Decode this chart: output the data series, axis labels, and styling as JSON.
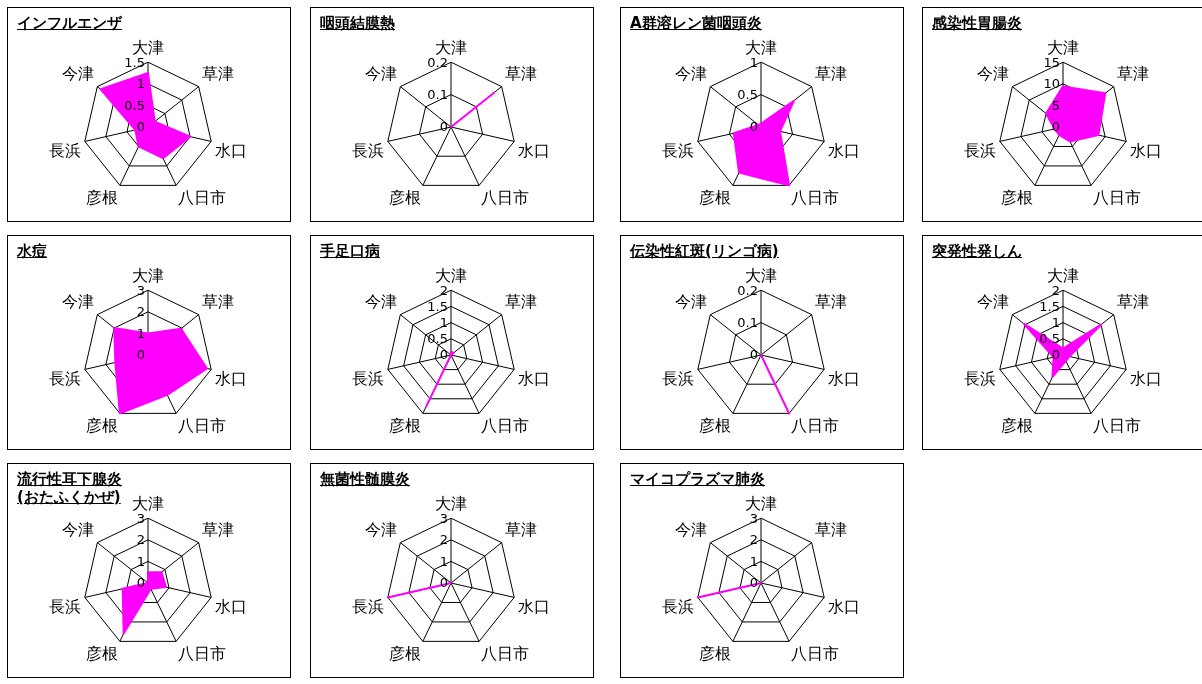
{
  "chart_data": [
    {
      "type": "radar",
      "title": "インフルエンザ",
      "categories": [
        "大津",
        "草津",
        "水口",
        "八日市",
        "彦根",
        "長浜",
        "今津"
      ],
      "series": [
        {
          "color": "#ff00ff",
          "values": [
            1.25,
            0.2,
            1.0,
            0.8,
            0.5,
            0.3,
            1.4
          ]
        }
      ],
      "ylim": [
        0,
        1.5
      ],
      "yticks": [
        0,
        0.5,
        1,
        1.5
      ],
      "grid": true
    },
    {
      "type": "radar",
      "title": "咽頭結膜熱",
      "categories": [
        "大津",
        "草津",
        "水口",
        "八日市",
        "彦根",
        "長浜",
        "今津"
      ],
      "series": [
        {
          "color": "#ff00ff",
          "values": [
            0,
            0.17,
            0,
            0,
            0,
            0,
            0
          ]
        }
      ],
      "ylim": [
        0,
        0.2
      ],
      "yticks": [
        0,
        0.1,
        0.2
      ],
      "grid": true
    },
    {
      "type": "radar",
      "title": "A群溶レン菌咽頭炎",
      "categories": [
        "大津",
        "草津",
        "水口",
        "八日市",
        "彦根",
        "長浜",
        "今津"
      ],
      "series": [
        {
          "color": "#ff00ff",
          "values": [
            0.05,
            0.65,
            0.3,
            1,
            0.78,
            0.43,
            0.05
          ]
        }
      ],
      "ylim": [
        0,
        1
      ],
      "yticks": [
        0,
        0.5,
        1
      ],
      "grid": true
    },
    {
      "type": "radar",
      "title": "感染性胃腸炎",
      "categories": [
        "大津",
        "草津",
        "水口",
        "八日市",
        "彦根",
        "長浜",
        "今津"
      ],
      "series": [
        {
          "color": "#ff00ff",
          "values": [
            9.4,
            12.5,
            8.4,
            3.7,
            2,
            2,
            5
          ]
        }
      ],
      "ylim": [
        0,
        15
      ],
      "yticks": [
        0,
        5,
        10,
        15
      ],
      "grid": true
    },
    {
      "type": "radar",
      "title": "水痘",
      "categories": [
        "大津",
        "草津",
        "水口",
        "八日市",
        "彦根",
        "長浜",
        "今津"
      ],
      "series": [
        {
          "color": "#ff00ff",
          "values": [
            1,
            1.95,
            2.8,
            2.05,
            3,
            1.55,
            2
          ]
        }
      ],
      "ylim": [
        0,
        3
      ],
      "yticks": [
        0,
        1,
        2,
        3
      ],
      "grid": true
    },
    {
      "type": "radar",
      "title": "手足口病",
      "categories": [
        "大津",
        "草津",
        "水口",
        "八日市",
        "彦根",
        "長浜",
        "今津"
      ],
      "series": [
        {
          "color": "#ff00ff",
          "values": [
            0.1,
            0.1,
            0,
            0,
            1.75,
            0,
            0
          ]
        }
      ],
      "ylim": [
        0,
        2
      ],
      "yticks": [
        0,
        0.5,
        1,
        1.5,
        2
      ],
      "grid": true
    },
    {
      "type": "radar",
      "title": "伝染性紅斑(リンゴ病)",
      "categories": [
        "大津",
        "草津",
        "水口",
        "八日市",
        "彦根",
        "長浜",
        "今津"
      ],
      "series": [
        {
          "color": "#ff00ff",
          "values": [
            0,
            0,
            0,
            0.2,
            0,
            0,
            0
          ]
        }
      ],
      "ylim": [
        0,
        0.2
      ],
      "yticks": [
        0,
        0.1,
        0.2
      ],
      "grid": true
    },
    {
      "type": "radar",
      "title": "突発性発しん",
      "categories": [
        "大津",
        "草津",
        "水口",
        "八日市",
        "彦根",
        "長浜",
        "今津"
      ],
      "series": [
        {
          "color": "#ff00ff",
          "values": [
            0.2,
            1.5,
            0.2,
            0.2,
            0.75,
            0.3,
            1.55
          ]
        }
      ],
      "ylim": [
        0,
        2
      ],
      "yticks": [
        0,
        0.5,
        1,
        1.5,
        2
      ],
      "grid": true
    },
    {
      "type": "radar",
      "title": "流行性耳下腺炎\n(おたふくかぜ)",
      "categories": [
        "大津",
        "草津",
        "水口",
        "八日市",
        "彦根",
        "長浜",
        "今津"
      ],
      "series": [
        {
          "color": "#ff00ff",
          "values": [
            0.5,
            0.8,
            0.85,
            0.3,
            2.6,
            1.2,
            0
          ]
        }
      ],
      "ylim": [
        0,
        3
      ],
      "yticks": [
        0,
        1,
        2,
        3
      ],
      "grid": true
    },
    {
      "type": "radar",
      "title": "無菌性髄膜炎",
      "categories": [
        "大津",
        "草津",
        "水口",
        "八日市",
        "彦根",
        "長浜",
        "今津"
      ],
      "series": [
        {
          "color": "#ff00ff",
          "values": [
            0,
            0,
            0,
            0,
            0,
            3,
            0
          ]
        }
      ],
      "ylim": [
        0,
        3
      ],
      "yticks": [
        0,
        1,
        2,
        3
      ],
      "grid": true
    },
    {
      "type": "radar",
      "title": "マイコプラズマ肺炎",
      "categories": [
        "大津",
        "草津",
        "水口",
        "八日市",
        "彦根",
        "長浜",
        "今津"
      ],
      "series": [
        {
          "color": "#ff00ff",
          "values": [
            0,
            0,
            0,
            0,
            0,
            3,
            0
          ]
        }
      ],
      "ylim": [
        0,
        3
      ],
      "yticks": [
        0,
        1,
        2,
        3
      ],
      "grid": true
    }
  ]
}
